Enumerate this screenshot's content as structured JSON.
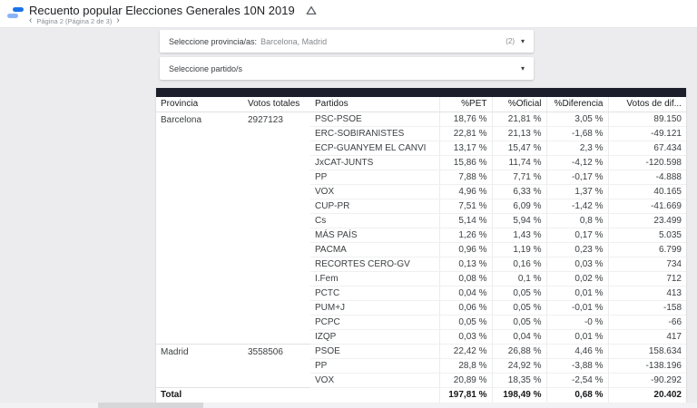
{
  "header": {
    "title": "Recuento popular Elecciones Generales 10N 2019",
    "pagination": {
      "prev": "‹",
      "label": "Página 2 (Página 2 de 3)",
      "next": "›"
    }
  },
  "filters": {
    "provincia": {
      "label": "Seleccione provincia/as:",
      "value": "Barcelona, Madrid",
      "count": "(2)"
    },
    "partido": {
      "label": "Seleccione partido/s",
      "value": ""
    }
  },
  "icons": {
    "caret": "▾"
  },
  "colors": {
    "logo_dark_blue": "#1a73e8",
    "logo_light_blue": "#8ab4f8",
    "table_topbar": "#1c1f2b",
    "canvas_background": "#ececee"
  },
  "table": {
    "columns": [
      "Provincia",
      "Votos totales",
      "Partidos",
      "%PET",
      "%Oficial",
      "%Diferencia",
      "Votos de dif..."
    ],
    "groups": [
      {
        "provincia": "Barcelona",
        "votos_totales": "2927123",
        "rows": [
          [
            "PSC-PSOE",
            "18,76 %",
            "21,81 %",
            "3,05 %",
            "89.150"
          ],
          [
            "ERC-SOBIRANISTES",
            "22,81 %",
            "21,13 %",
            "-1,68 %",
            "-49.121"
          ],
          [
            "ECP-GUANYEM EL CANVI",
            "13,17 %",
            "15,47 %",
            "2,3 %",
            "67.434"
          ],
          [
            "JxCAT-JUNTS",
            "15,86 %",
            "11,74 %",
            "-4,12 %",
            "-120.598"
          ],
          [
            "PP",
            "7,88 %",
            "7,71 %",
            "-0,17 %",
            "-4.888"
          ],
          [
            "VOX",
            "4,96 %",
            "6,33 %",
            "1,37 %",
            "40.165"
          ],
          [
            "CUP-PR",
            "7,51 %",
            "6,09 %",
            "-1,42 %",
            "-41.669"
          ],
          [
            "Cs",
            "5,14 %",
            "5,94 %",
            "0,8 %",
            "23.499"
          ],
          [
            "MÁS PAÍS",
            "1,26 %",
            "1,43 %",
            "0,17 %",
            "5.035"
          ],
          [
            "PACMA",
            "0,96 %",
            "1,19 %",
            "0,23 %",
            "6.799"
          ],
          [
            "RECORTES CERO-GV",
            "0,13 %",
            "0,16 %",
            "0,03 %",
            "734"
          ],
          [
            "I.Fem",
            "0,08 %",
            "0,1 %",
            "0,02 %",
            "712"
          ],
          [
            "PCTC",
            "0,04 %",
            "0,05 %",
            "0,01 %",
            "413"
          ],
          [
            "PUM+J",
            "0,06 %",
            "0,05 %",
            "-0,01 %",
            "-158"
          ],
          [
            "PCPC",
            "0,05 %",
            "0,05 %",
            "-0 %",
            "-66"
          ],
          [
            "IZQP",
            "0,03 %",
            "0,04 %",
            "0,01 %",
            "417"
          ]
        ]
      },
      {
        "provincia": "Madrid",
        "votos_totales": "3558506",
        "rows": [
          [
            "PSOE",
            "22,42 %",
            "26,88 %",
            "4,46 %",
            "158.634"
          ],
          [
            "PP",
            "28,8 %",
            "24,92 %",
            "-3,88 %",
            "-138.196"
          ],
          [
            "VOX",
            "20,89 %",
            "18,35 %",
            "-2,54 %",
            "-90.292"
          ]
        ]
      }
    ],
    "total": {
      "label": "Total",
      "pet": "197,81 %",
      "oficial": "198,49 %",
      "diferencia": "0,68 %",
      "votos": "20.402"
    }
  }
}
